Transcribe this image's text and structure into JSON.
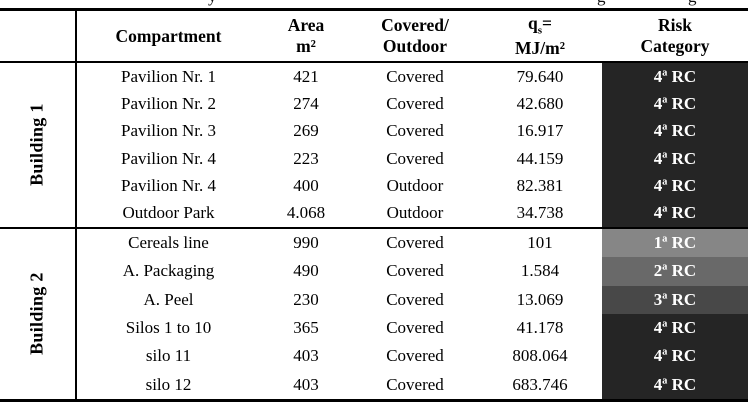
{
  "caption_fragments": [
    "y",
    "g",
    "g"
  ],
  "table": {
    "headers": {
      "compartment": "Compartment",
      "area_l1": "Area",
      "area_l2": "m²",
      "covered_l1": "Covered/",
      "covered_l2": "Outdoor",
      "q_base": "q",
      "q_sub": "s",
      "q_eq": "=",
      "q_l2": "MJ/m²",
      "risk_l1": "Risk",
      "risk_l2": "Category"
    },
    "groups": [
      {
        "label": "Building 1",
        "rows": [
          {
            "compartment": "Pavilion Nr. 1",
            "area": "421",
            "covered": "Covered",
            "qs": "79.640",
            "risk": "4ª RC",
            "risk_level": "4"
          },
          {
            "compartment": "Pavilion Nr. 2",
            "area": "274",
            "covered": "Covered",
            "qs": "42.680",
            "risk": "4ª RC",
            "risk_level": "4"
          },
          {
            "compartment": "Pavilion Nr. 3",
            "area": "269",
            "covered": "Covered",
            "qs": "16.917",
            "risk": "4ª RC",
            "risk_level": "4"
          },
          {
            "compartment": "Pavilion Nr. 4",
            "area": "223",
            "covered": "Covered",
            "qs": "44.159",
            "risk": "4ª RC",
            "risk_level": "4"
          },
          {
            "compartment": "Pavilion Nr. 4",
            "area": "400",
            "covered": "Outdoor",
            "qs": "82.381",
            "risk": "4ª RC",
            "risk_level": "4"
          },
          {
            "compartment": "Outdoor Park",
            "area": "4.068",
            "covered": "Outdoor",
            "qs": "34.738",
            "risk": "4ª RC",
            "risk_level": "4"
          }
        ]
      },
      {
        "label": "Building 2",
        "rows": [
          {
            "compartment": "Cereals line",
            "area": "990",
            "covered": "Covered",
            "qs": "101",
            "risk": "1ª RC",
            "risk_level": "1"
          },
          {
            "compartment": "A. Packaging",
            "area": "490",
            "covered": "Covered",
            "qs": "1.584",
            "risk": "2ª RC",
            "risk_level": "2"
          },
          {
            "compartment": "A. Peel",
            "area": "230",
            "covered": "Covered",
            "qs": "13.069",
            "risk": "3ª RC",
            "risk_level": "3"
          },
          {
            "compartment": "Silos 1 to 10",
            "area": "365",
            "covered": "Covered",
            "qs": "41.178",
            "risk": "4ª RC",
            "risk_level": "4"
          },
          {
            "compartment": "silo 11",
            "area": "403",
            "covered": "Covered",
            "qs": "808.064",
            "risk": "4ª RC",
            "risk_level": "4"
          },
          {
            "compartment": "silo 12",
            "area": "403",
            "covered": "Covered",
            "qs": "683.746",
            "risk": "4ª RC",
            "risk_level": "4"
          }
        ]
      }
    ],
    "risk_colors": {
      "1": "#868686",
      "2": "#696969",
      "3": "#484848",
      "4": "#252525"
    },
    "risk_text_color": "#ffffff"
  }
}
